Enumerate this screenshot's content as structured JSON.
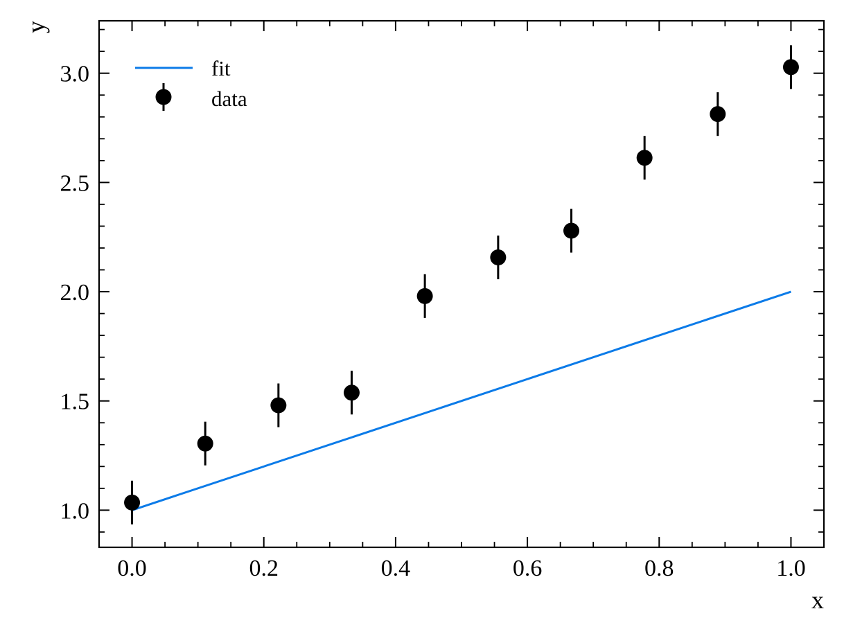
{
  "chart_data": {
    "type": "scatter",
    "xlabel": "x",
    "ylabel": "y",
    "xlim": [
      -0.05,
      1.05
    ],
    "ylim": [
      0.83,
      3.24
    ],
    "xticks": [
      0.0,
      0.2,
      0.4,
      0.6,
      0.8,
      1.0
    ],
    "xtick_labels": [
      "0.0",
      "0.2",
      "0.4",
      "0.6",
      "0.8",
      "1.0"
    ],
    "yticks": [
      1.0,
      1.5,
      2.0,
      2.5,
      3.0
    ],
    "ytick_labels": [
      "1.0",
      "1.5",
      "2.0",
      "2.5",
      "3.0"
    ],
    "x_minor_step": 0.05,
    "y_minor_step": 0.1,
    "grid": false,
    "tick_direction": "in",
    "legend": {
      "position": "upper-left",
      "entries": [
        "fit",
        "data"
      ]
    },
    "series": [
      {
        "name": "fit",
        "kind": "line",
        "color": "#0C7BE8",
        "x": [
          0.0,
          1.0
        ],
        "y": [
          1.0,
          2.0
        ]
      },
      {
        "name": "data",
        "kind": "errorbar",
        "color": "#000000",
        "x": [
          0.0,
          0.1111,
          0.2222,
          0.3333,
          0.4444,
          0.5556,
          0.6667,
          0.7778,
          0.8889,
          1.0
        ],
        "y": [
          1.035,
          1.305,
          1.48,
          1.538,
          1.98,
          2.157,
          2.279,
          2.613,
          2.813,
          3.028
        ],
        "yerr": [
          0.1,
          0.1,
          0.1,
          0.1,
          0.1,
          0.1,
          0.1,
          0.1,
          0.1,
          0.1
        ]
      }
    ]
  }
}
